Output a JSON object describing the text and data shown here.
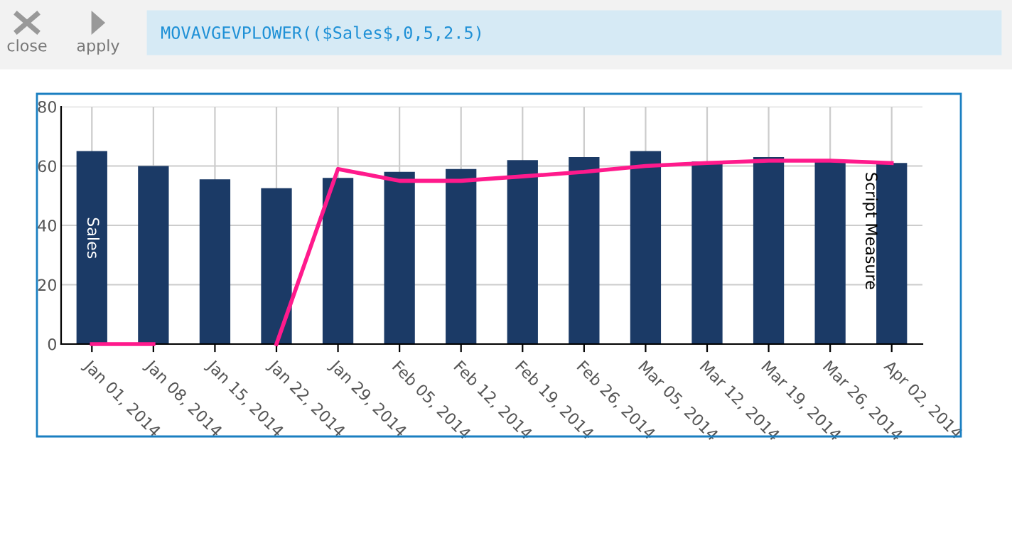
{
  "chart_data": {
    "type": "bar",
    "categories": [
      "Jan 01, 2014",
      "Jan 08, 2014",
      "Jan 15, 2014",
      "Jan 22, 2014",
      "Jan 29, 2014",
      "Feb 05, 2014",
      "Feb 12, 2014",
      "Feb 19, 2014",
      "Feb 26, 2014",
      "Mar 05, 2014",
      "Mar 12, 2014",
      "Mar 19, 2014",
      "Mar 26, 2014",
      "Apr 02, 2014"
    ],
    "series": [
      {
        "name": "Sales",
        "color": "#1b3a66",
        "values": [
          65,
          60,
          55.5,
          52.5,
          56,
          58,
          59,
          62,
          63,
          65,
          61.5,
          63,
          62,
          61
        ]
      },
      {
        "name": "Script Measure",
        "type": "line",
        "color": "#ff1a8c",
        "values": [
          0,
          0,
          null,
          0,
          59,
          55,
          55,
          56.5,
          58,
          60,
          61,
          61.8,
          61.8,
          61
        ]
      }
    ],
    "ylim": [
      0,
      80
    ],
    "yticks": [
      0,
      20,
      40,
      60,
      80
    ],
    "grid": true,
    "marker": "none",
    "line_style": "solid",
    "annotations": [
      "close",
      "apply",
      "MOVAVGEVPLOWER(($Sales$,0,5,2.5)"
    ]
  }
}
